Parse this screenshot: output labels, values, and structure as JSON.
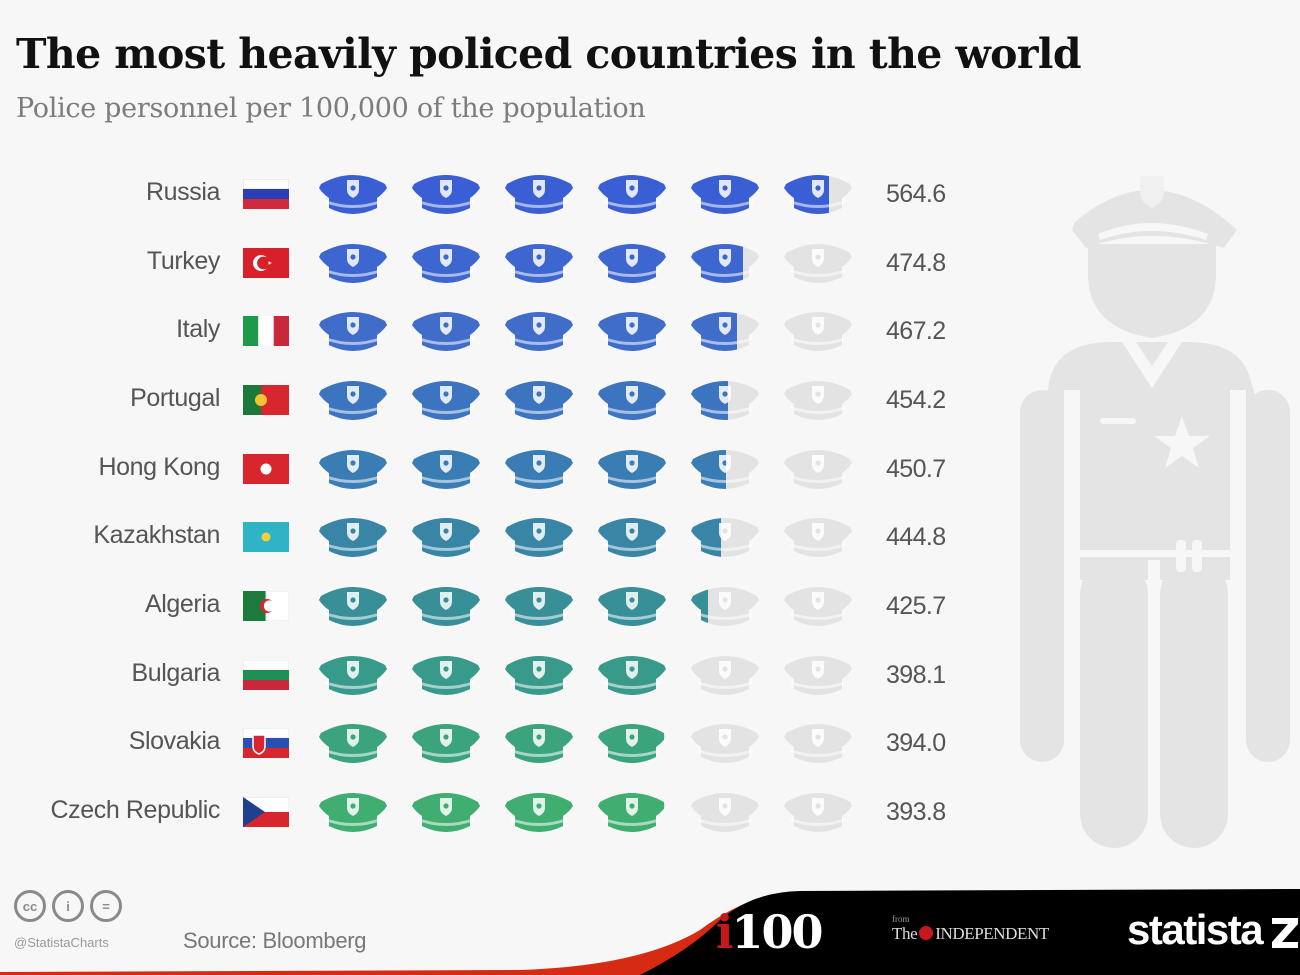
{
  "header": {
    "title": "The most heavily policed countries in the world",
    "subtitle": "Police personnel per 100,000 of the population"
  },
  "legend": {
    "icon": "police-cap-icon",
    "unit_per_icon": 100
  },
  "rows": [
    {
      "country": "Russia",
      "flag": "russia-flag-icon",
      "value": "564.6",
      "color": "#3a5fd4"
    },
    {
      "country": "Turkey",
      "flag": "turkey-flag-icon",
      "value": "474.8",
      "color": "#3d66d0"
    },
    {
      "country": "Italy",
      "flag": "italy-flag-icon",
      "value": "467.2",
      "color": "#3f6dc9"
    },
    {
      "country": "Portugal",
      "flag": "portugal-flag-icon",
      "value": "454.2",
      "color": "#3d74bf"
    },
    {
      "country": "Hong Kong",
      "flag": "hong-kong-flag-icon",
      "value": "450.7",
      "color": "#3a7db4"
    },
    {
      "country": "Kazakhstan",
      "flag": "kazakhstan-flag-icon",
      "value": "444.8",
      "color": "#3985a6"
    },
    {
      "country": "Algeria",
      "flag": "algeria-flag-icon",
      "value": "425.7",
      "color": "#388f98"
    },
    {
      "country": "Bulgaria",
      "flag": "bulgaria-flag-icon",
      "value": "398.1",
      "color": "#389a8a"
    },
    {
      "country": "Slovakia",
      "flag": "slovakia-flag-icon",
      "value": "394.0",
      "color": "#3ba47d"
    },
    {
      "country": "Czech Republic",
      "flag": "czech-republic-flag-icon",
      "value": "393.8",
      "color": "#3fae70"
    }
  ],
  "colors": {
    "empty_cap": "#e3e3e3",
    "officer_silhouette": "#e4e4e4",
    "footer_band": "#000000",
    "footer_accent": "#d62a12"
  },
  "footer": {
    "license_icons": [
      "cc-icon",
      "attribution-icon",
      "no-derivatives-icon"
    ],
    "license_glyphs": [
      "cc",
      "i",
      "="
    ],
    "handle": "@StatistaCharts",
    "source": "Source: Bloomberg",
    "i100_i": "i",
    "i100_num": "100",
    "independent_from": "from",
    "independent_the": "The",
    "independent_name": "INDEPENDENT",
    "statista": "statista"
  },
  "chart_data": {
    "type": "bar",
    "title": "The most heavily policed countries in the world",
    "subtitle": "Police personnel per 100,000 of the population",
    "categories": [
      "Russia",
      "Turkey",
      "Italy",
      "Portugal",
      "Hong Kong",
      "Kazakhstan",
      "Algeria",
      "Bulgaria",
      "Slovakia",
      "Czech Republic"
    ],
    "values": [
      564.6,
      474.8,
      467.2,
      454.2,
      450.7,
      444.8,
      425.7,
      398.1,
      394.0,
      393.8
    ],
    "xlabel": "",
    "ylabel": "Police personnel per 100,000 of the population",
    "orientation": "horizontal",
    "representation": "pictogram (1 police cap = 100 personnel, 6 caps max)",
    "xlim": [
      0,
      600
    ],
    "grid": false,
    "legend": "none",
    "source": "Bloomberg"
  }
}
